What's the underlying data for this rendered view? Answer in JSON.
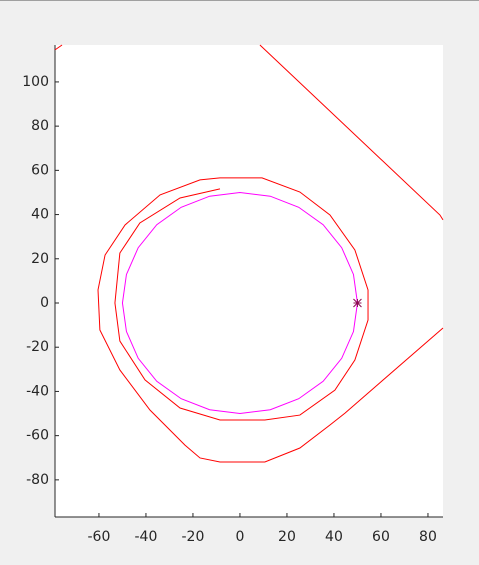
{
  "chart_data": {
    "type": "line",
    "xlim": [
      -78.7,
      86.4
    ],
    "ylim": [
      -96.8,
      116.7
    ],
    "xticks": [
      -60,
      -40,
      -20,
      0,
      20,
      40,
      60,
      80
    ],
    "yticks": [
      -80,
      -60,
      -40,
      -20,
      0,
      20,
      40,
      60,
      80,
      100
    ],
    "series": [
      {
        "color": "#ff0000",
        "x": [
          86.4,
          44.7,
          38.3,
          25.5,
          10.6,
          -8.5,
          -17,
          -23.4,
          -38.3,
          -51.1,
          -59.6,
          -60.4,
          -57.4,
          -48.9,
          -34,
          -17,
          -8.5,
          9.4,
          25.5,
          38.3,
          48.9,
          54.5,
          54.5,
          48.9,
          40.4,
          25.5,
          10.6,
          -8.5,
          -25.5,
          -40.4,
          -51.1,
          -53.2,
          -51.1,
          -42.6,
          -25.5,
          -8.5,
          null,
          8.5,
          85.1,
          86.4,
          null,
          -78.7,
          -75.7
        ],
        "values": [
          -11.3,
          -49.8,
          -55.2,
          -65.6,
          -71.9,
          -71.9,
          -70.1,
          -64.3,
          -48.4,
          -30.3,
          -12.2,
          5.9,
          21.7,
          35.3,
          48.9,
          55.7,
          56.6,
          56.6,
          50.2,
          39.8,
          24,
          5.9,
          -7.7,
          -25.8,
          -39.4,
          -50.7,
          -52.9,
          -52.9,
          -47.5,
          -34.8,
          -17.2,
          0,
          22.6,
          36.2,
          47.5,
          51.6,
          null,
          116.7,
          39.8,
          37.6,
          null,
          114.5,
          116.7
        ]
      },
      {
        "color": "#ff00ff",
        "x": [
          50,
          48.3,
          43.3,
          35.4,
          25,
          12.9,
          0,
          -12.9,
          -25,
          -35.4,
          -43.3,
          -48.3,
          -50,
          -48.3,
          -43.3,
          -35.4,
          -25,
          -12.9,
          0,
          12.9,
          25,
          35.4,
          43.3,
          48.3,
          50
        ],
        "values": [
          0,
          12.9,
          25,
          35.4,
          43.3,
          48.3,
          50,
          48.3,
          43.3,
          35.4,
          25,
          12.9,
          0,
          -12.9,
          -25,
          -35.4,
          -43.3,
          -48.3,
          -50,
          -48.3,
          -43.3,
          -35.4,
          -25,
          -12.9,
          0
        ]
      },
      {
        "color": "#8b0a50",
        "marker": "star",
        "x": [
          50
        ],
        "values": [
          0
        ]
      }
    ]
  }
}
